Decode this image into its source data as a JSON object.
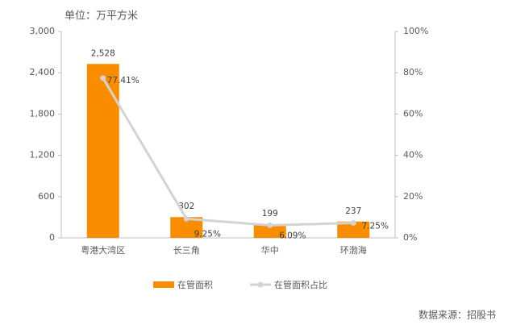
{
  "chart_data": {
    "type": "bar-line",
    "unit": "单位：万平方米",
    "source": "数据来源：招股书",
    "categories": [
      "粤港大湾区",
      "长三角",
      "华中",
      "环渤海"
    ],
    "series": [
      {
        "name": "在管面积",
        "type": "bar",
        "color": "#fa8c00",
        "values": [
          2528,
          302,
          199,
          237
        ],
        "value_labels": [
          "2,528",
          "302",
          "199",
          "237"
        ]
      },
      {
        "name": "在管面积占比",
        "type": "line",
        "axis": "y2",
        "color": "#d3d3d3",
        "values": [
          77.41,
          9.25,
          6.09,
          7.25
        ],
        "value_labels": [
          "77.41%",
          "9.25%",
          "6.09%",
          "7.25%"
        ]
      }
    ],
    "ylim": [
      0,
      3000
    ],
    "yticks": [
      0,
      600,
      {
        "value": 1200,
        "label": "1,200"
      },
      {
        "value": 1800,
        "label": "1,800"
      },
      {
        "value": 2400,
        "label": "2,400"
      },
      {
        "value": 3000,
        "label": "3,000"
      }
    ],
    "y2lim": [
      0,
      100
    ],
    "y2ticks": [
      {
        "value": 0,
        "label": "0%"
      },
      {
        "value": 20,
        "label": "20%"
      },
      {
        "value": 40,
        "label": "40%"
      },
      {
        "value": 60,
        "label": "60%"
      },
      {
        "value": 80,
        "label": "80%"
      },
      {
        "value": 100,
        "label": "100%"
      }
    ],
    "legend": "bottom"
  }
}
